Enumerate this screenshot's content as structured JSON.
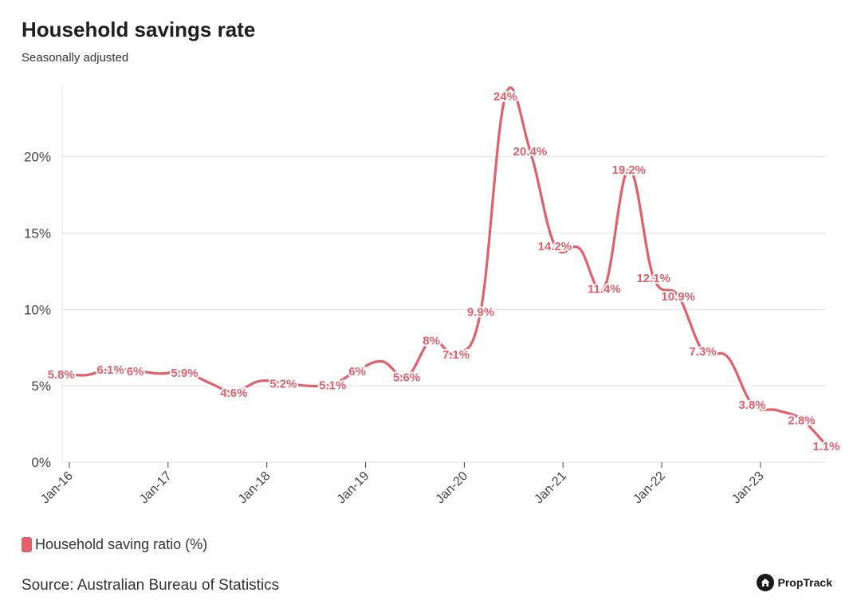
{
  "header": {
    "title": "Household savings rate",
    "subtitle": "Seasonally adjusted"
  },
  "legend": {
    "label": "Household saving ratio (%)"
  },
  "footer": {
    "source": "Source: Australian Bureau of Statistics",
    "brand": "PropTrack"
  },
  "colors": {
    "series": "#e0606c",
    "grid": "#e6e6e6",
    "axis": "#444444",
    "brand": "#1a1a1a"
  },
  "icons": {
    "brand": "house-icon"
  },
  "chart_data": {
    "type": "line",
    "title": "Household savings rate",
    "subtitle": "Seasonally adjusted",
    "xlabel": "",
    "ylabel": "",
    "ylim": [
      0,
      24
    ],
    "yticks": [
      0,
      5,
      10,
      15,
      20
    ],
    "ytick_labels": [
      "0%",
      "5%",
      "10%",
      "15%",
      "20%"
    ],
    "xtick_labels": [
      "Jan-16",
      "Jan-17",
      "Jan-18",
      "Jan-19",
      "Jan-20",
      "Jan-21",
      "Jan-22",
      "Jan-23"
    ],
    "xtick_positions": [
      "2016-01",
      "2017-01",
      "2018-01",
      "2019-01",
      "2020-01",
      "2021-01",
      "2022-01",
      "2023-01"
    ],
    "x_range": [
      "2016-01",
      "2023-09"
    ],
    "grid": "horizontal",
    "legend_position": "bottom-left",
    "series": [
      {
        "name": "Household saving ratio (%)",
        "x": [
          "2015-12",
          "2016-03",
          "2016-06",
          "2016-09",
          "2016-12",
          "2017-03",
          "2017-06",
          "2017-09",
          "2017-12",
          "2018-03",
          "2018-06",
          "2018-09",
          "2018-12",
          "2019-03",
          "2019-06",
          "2019-09",
          "2019-12",
          "2020-03",
          "2020-06",
          "2020-09",
          "2020-12",
          "2021-03",
          "2021-06",
          "2021-09",
          "2021-12",
          "2022-03",
          "2022-06",
          "2022-09",
          "2022-12",
          "2023-03",
          "2023-06",
          "2023-09"
        ],
        "values": [
          5.8,
          5.7,
          6.1,
          6.0,
          5.8,
          5.9,
          5.2,
          4.6,
          5.3,
          5.2,
          5.0,
          5.1,
          6.0,
          6.6,
          5.6,
          8.0,
          7.1,
          9.9,
          24.0,
          20.4,
          14.2,
          14.0,
          11.4,
          19.2,
          12.1,
          10.9,
          7.3,
          6.9,
          3.8,
          3.4,
          2.8,
          1.1
        ],
        "data_labels": [
          "5.8%",
          "",
          "6.1%",
          "6%",
          "",
          "5.9%",
          "",
          "4.6%",
          "",
          "5.2%",
          "",
          "5.1%",
          "6%",
          "",
          "5.6%",
          "8%",
          "7.1%",
          "9.9%",
          "24%",
          "20.4%",
          "14.2%",
          "",
          "11.4%",
          "19.2%",
          "12.1%",
          "10.9%",
          "7.3%",
          "",
          "3.8%",
          "",
          "2.8%",
          "1.1%"
        ]
      }
    ]
  }
}
